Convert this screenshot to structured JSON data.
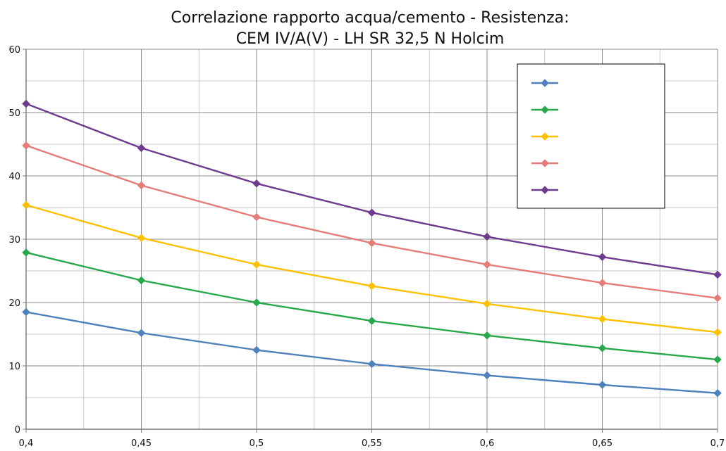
{
  "chart_data": {
    "type": "line",
    "title_lines": [
      "Correlazione rapporto acqua/cemento  - Resistenza:",
      "CEM IV/A(V) - LH SR 32,5 N Holcim"
    ],
    "xlabel": "",
    "ylabel": "",
    "x": [
      0.4,
      0.45,
      0.5,
      0.55,
      0.6,
      0.65,
      0.7
    ],
    "x_tick_labels": [
      "0,4",
      "0,45",
      "0,5",
      "0,55",
      "0,6",
      "0,65",
      "0,7"
    ],
    "xlim": [
      0.4,
      0.7
    ],
    "ylim": [
      0,
      60
    ],
    "y_ticks": [
      0,
      10,
      20,
      30,
      40,
      50,
      60
    ],
    "y_tick_labels": [
      "0",
      "10",
      "20",
      "30",
      "40",
      "50",
      "60"
    ],
    "grid": true,
    "minor_grid": true,
    "legend_position": "top-right",
    "series": [
      {
        "color": "#4f81bd",
        "marker": "diamond",
        "values": [
          18.5,
          15.2,
          12.5,
          10.3,
          8.5,
          7.0,
          5.7
        ]
      },
      {
        "color": "#27a84a",
        "marker": "diamond",
        "values": [
          27.9,
          23.5,
          20.0,
          17.1,
          14.8,
          12.8,
          11.0
        ]
      },
      {
        "color": "#ffc000",
        "marker": "diamond",
        "values": [
          35.4,
          30.2,
          26.0,
          22.6,
          19.8,
          17.4,
          15.3
        ]
      },
      {
        "color": "#e57c78",
        "marker": "diamond",
        "values": [
          44.8,
          38.5,
          33.5,
          29.4,
          26.0,
          23.1,
          20.7
        ]
      },
      {
        "color": "#6f3b8f",
        "marker": "diamond",
        "values": [
          51.4,
          44.4,
          38.8,
          34.2,
          30.4,
          27.2,
          24.4
        ]
      }
    ]
  }
}
